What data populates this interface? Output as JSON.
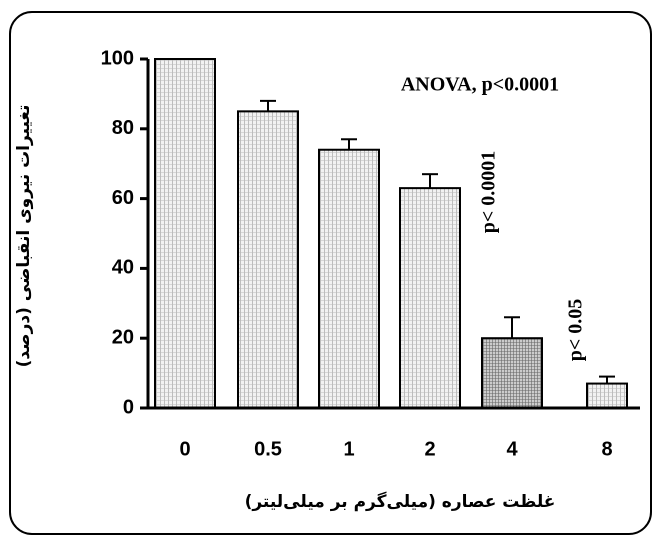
{
  "chart_data": {
    "type": "bar",
    "categories": [
      "0",
      "0.5",
      "1",
      "2",
      "4",
      "8"
    ],
    "values": [
      100,
      85,
      74,
      63,
      20,
      7
    ],
    "errors": [
      0,
      3,
      3,
      4,
      6,
      2
    ],
    "ylim": [
      0,
      100
    ],
    "yticks": [
      0,
      20,
      40,
      60,
      80,
      100
    ],
    "ylabel": "تغییرات نیروی انقباضی (درصد)",
    "xlabel": "غلظت عصاره (میلی‌گرم بر میلی‌لیتر)",
    "annotations": [
      "ANOVA, p<0.0001",
      "p< 0.0001",
      "p< 0.05"
    ]
  }
}
